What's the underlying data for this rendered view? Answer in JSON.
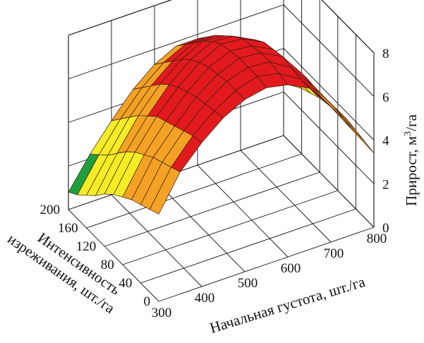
{
  "chart_data": {
    "type": "surface3d",
    "x_axis": {
      "label": "Начальная густота, шт./га",
      "ticks": [
        "300",
        "400",
        "500",
        "600",
        "700",
        "800"
      ],
      "range": [
        300,
        800
      ]
    },
    "y_axis": {
      "label": "Интенсивность изреживания, шт./га",
      "label_lines": [
        "Интенсивность",
        "изреживания, шт./га"
      ],
      "ticks": [
        "0",
        "40",
        "80",
        "120",
        "160",
        "200"
      ],
      "range": [
        0,
        200
      ]
    },
    "z_axis": {
      "label": "Прирост, м³/га",
      "label_main": "Прирост, м",
      "label_sup": "3",
      "label_tail": "/га",
      "ticks": [
        "0",
        "2",
        "4",
        "6",
        "8"
      ],
      "range": [
        0,
        8
      ]
    },
    "grid_lines": true,
    "x": [
      300,
      350,
      400,
      450,
      500,
      550,
      600,
      650,
      700,
      750,
      800
    ],
    "y": [
      0,
      20,
      40,
      60,
      80,
      100,
      120,
      140,
      160,
      180,
      200
    ],
    "z": [
      [
        4.0,
        5.6,
        6.6,
        7.4,
        7.9,
        8.1,
        7.9,
        7.4,
        6.2,
        4.8,
        3.4
      ],
      [
        3.8,
        5.4,
        6.5,
        7.3,
        7.9,
        8.2,
        8.0,
        7.4,
        6.2,
        4.9,
        3.5
      ],
      [
        3.6,
        5.2,
        6.3,
        7.2,
        7.9,
        8.2,
        8.1,
        7.5,
        6.3,
        5.0,
        3.6
      ],
      [
        3.4,
        5.0,
        6.1,
        7.1,
        7.8,
        8.2,
        8.1,
        7.6,
        6.4,
        5.0,
        3.7
      ],
      [
        3.1,
        4.7,
        5.9,
        6.9,
        7.7,
        8.1,
        8.0,
        7.5,
        6.3,
        5.0,
        3.6
      ],
      [
        2.8,
        4.4,
        5.7,
        6.7,
        7.5,
        8.0,
        7.9,
        7.4,
        6.2,
        4.9,
        3.5
      ],
      [
        2.4,
        4.0,
        5.3,
        6.4,
        7.2,
        7.7,
        7.6,
        7.1,
        6.0,
        4.7,
        3.4
      ],
      [
        1.9,
        3.5,
        4.9,
        6.0,
        6.8,
        7.3,
        7.2,
        6.7,
        5.7,
        4.5,
        3.2
      ],
      [
        1.5,
        3.0,
        4.4,
        5.5,
        6.3,
        6.8,
        6.8,
        6.3,
        5.3,
        4.2,
        3.0
      ],
      [
        1.1,
        2.6,
        3.9,
        5.0,
        5.8,
        6.3,
        6.3,
        5.8,
        4.9,
        3.8,
        2.7
      ],
      [
        0.8,
        2.2,
        3.4,
        4.5,
        5.3,
        5.8,
        5.8,
        5.3,
        4.5,
        3.5,
        2.4
      ]
    ],
    "colorbands": [
      {
        "min": 0,
        "max": 2,
        "color": "#1f9e3f"
      },
      {
        "min": 2,
        "max": 4,
        "color": "#f5ec26"
      },
      {
        "min": 4,
        "max": 6,
        "color": "#f3a225"
      },
      {
        "min": 6,
        "max": 8.5,
        "color": "#e21a1e"
      }
    ]
  }
}
